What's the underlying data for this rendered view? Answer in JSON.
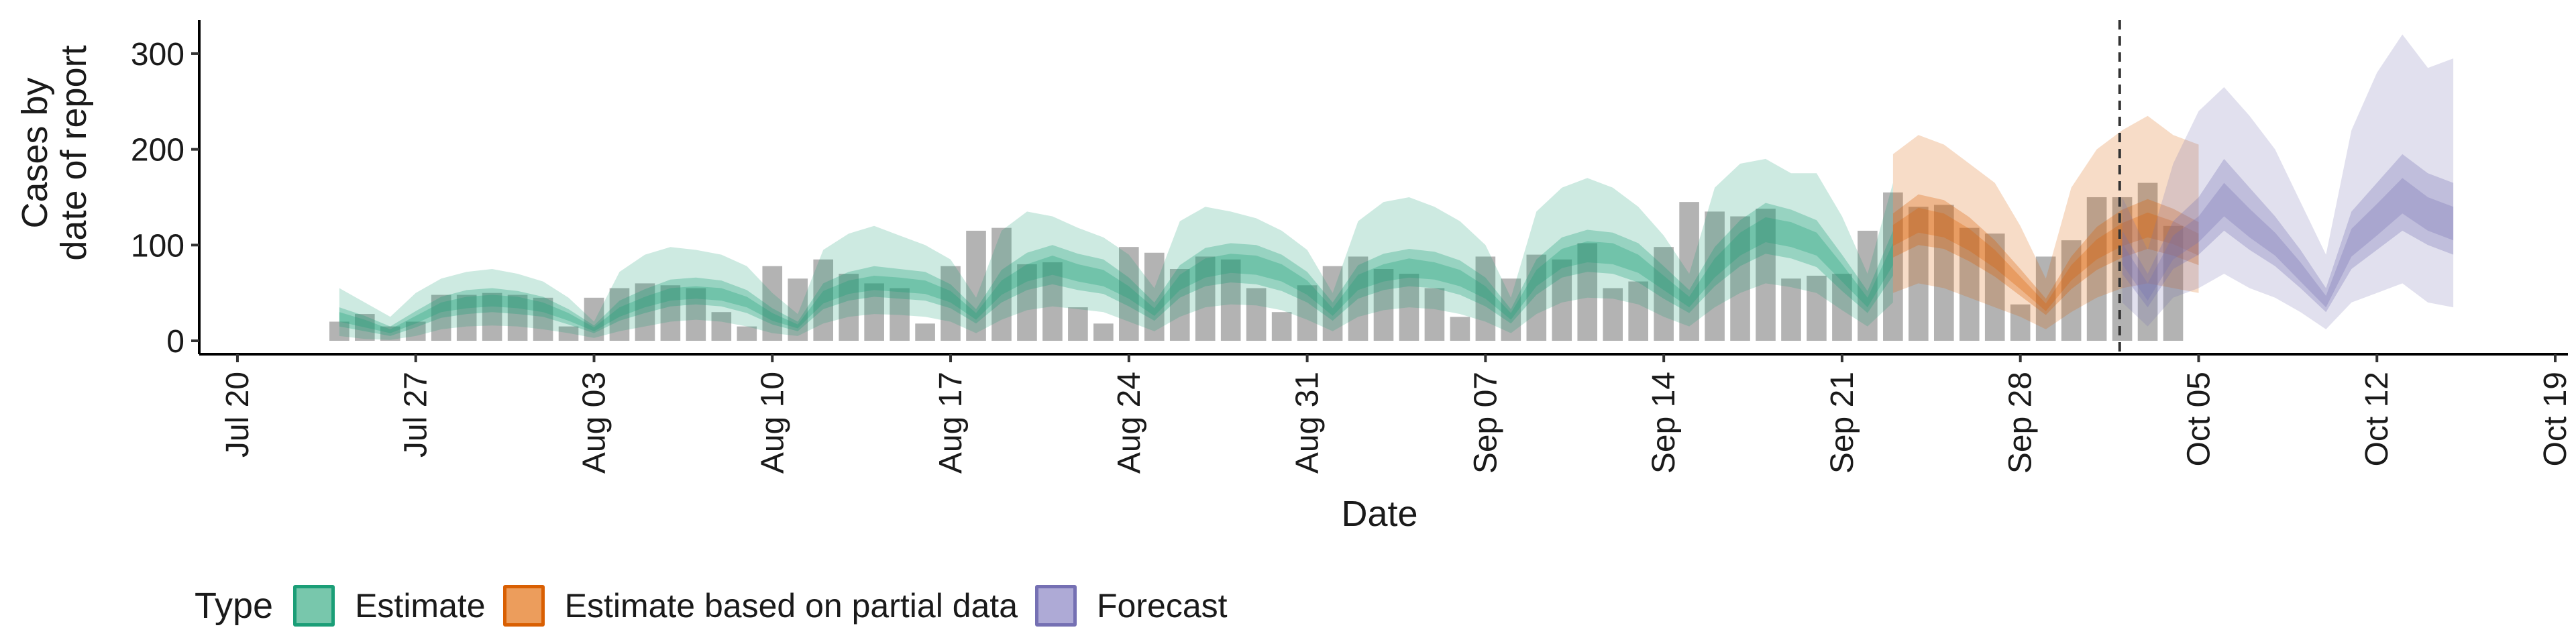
{
  "chart_data": {
    "type": "area",
    "title": "",
    "xlabel": "Date",
    "ylabel": [
      "Cases by",
      "date of report"
    ],
    "x_start": "2020-07-20",
    "x_ticks": [
      "Jul 20",
      "Jul 27",
      "Aug 03",
      "Aug 10",
      "Aug 17",
      "Aug 24",
      "Aug 31",
      "Sep 07",
      "Sep 14",
      "Sep 21",
      "Sep 28",
      "Oct 05",
      "Oct 12",
      "Oct 19"
    ],
    "y_ticks": [
      0,
      100,
      200,
      300
    ],
    "ylim": [
      -14,
      335
    ],
    "xlim_days": [
      -1.5,
      91.5
    ],
    "forecast_start_day": 73.9,
    "grid": false,
    "legend_position": "bottom",
    "legend_title": "Type",
    "colors": {
      "Estimate": "#1b9e77",
      "Estimate based on partial data": "#d95f02",
      "Forecast": "#7570b3",
      "bars": "#b3b3b3",
      "divider": "#333333"
    },
    "reported_cases": {
      "start_day": 4,
      "values": [
        20,
        28,
        15,
        20,
        48,
        48,
        50,
        48,
        45,
        15,
        45,
        55,
        60,
        58,
        55,
        30,
        15,
        78,
        65,
        85,
        70,
        60,
        55,
        18,
        78,
        115,
        118,
        80,
        82,
        35,
        18,
        98,
        92,
        75,
        88,
        85,
        55,
        30,
        58,
        78,
        88,
        75,
        70,
        55,
        25,
        88,
        65,
        90,
        85,
        102,
        55,
        62,
        98,
        145,
        135,
        130,
        138,
        65,
        68,
        70,
        115,
        155,
        140,
        142,
        118,
        112,
        38,
        88,
        105,
        150,
        150,
        165,
        120
      ]
    },
    "series": [
      {
        "name": "Estimate",
        "start_day": 4,
        "median": [
          25,
          18,
          10,
          22,
          35,
          40,
          42,
          40,
          35,
          25,
          12,
          30,
          40,
          48,
          50,
          48,
          40,
          25,
          15,
          45,
          55,
          60,
          58,
          55,
          45,
          25,
          55,
          70,
          78,
          70,
          65,
          50,
          30,
          60,
          75,
          80,
          78,
          70,
          55,
          30,
          60,
          70,
          75,
          72,
          65,
          50,
          25,
          65,
          85,
          92,
          90,
          80,
          60,
          40,
          75,
          100,
          115,
          110,
          100,
          70,
          40,
          90
        ],
        "lower90": [
          5,
          2,
          1,
          5,
          12,
          15,
          16,
          15,
          12,
          8,
          3,
          10,
          15,
          20,
          22,
          20,
          15,
          8,
          5,
          18,
          25,
          28,
          27,
          25,
          20,
          8,
          22,
          32,
          36,
          33,
          30,
          20,
          10,
          25,
          35,
          38,
          37,
          32,
          22,
          10,
          25,
          32,
          35,
          33,
          28,
          20,
          8,
          28,
          40,
          45,
          44,
          38,
          25,
          15,
          35,
          50,
          60,
          56,
          50,
          32,
          15,
          40
        ],
        "upper90": [
          55,
          40,
          25,
          50,
          65,
          72,
          75,
          70,
          62,
          45,
          20,
          72,
          90,
          98,
          95,
          90,
          78,
          50,
          28,
          95,
          112,
          120,
          110,
          100,
          85,
          45,
          115,
          135,
          130,
          118,
          108,
          90,
          55,
          125,
          140,
          135,
          128,
          115,
          95,
          50,
          125,
          145,
          150,
          140,
          125,
          100,
          45,
          135,
          160,
          170,
          160,
          140,
          110,
          70,
          160,
          185,
          190,
          175,
          175,
          130,
          70,
          165
        ],
        "lower50": [
          15,
          10,
          5,
          14,
          24,
          28,
          30,
          28,
          25,
          17,
          8,
          21,
          29,
          36,
          38,
          36,
          29,
          17,
          10,
          33,
          42,
          46,
          44,
          42,
          34,
          18,
          40,
          53,
          59,
          53,
          49,
          36,
          21,
          45,
          57,
          61,
          59,
          52,
          40,
          21,
          44,
          53,
          57,
          55,
          48,
          36,
          18,
          48,
          66,
          72,
          70,
          61,
          44,
          29,
          57,
          78,
          91,
          86,
          77,
          52,
          29,
          68
        ],
        "upper50": [
          35,
          26,
          15,
          31,
          46,
          53,
          55,
          52,
          46,
          33,
          16,
          42,
          54,
          64,
          66,
          63,
          53,
          34,
          20,
          60,
          72,
          78,
          75,
          72,
          59,
          33,
          74,
          92,
          100,
          91,
          85,
          66,
          40,
          79,
          97,
          102,
          100,
          90,
          72,
          40,
          79,
          91,
          96,
          93,
          84,
          66,
          33,
          85,
          108,
          116,
          113,
          102,
          78,
          53,
          98,
          126,
          144,
          137,
          126,
          90,
          52,
          115
        ],
        "lower20": [
          20,
          14,
          8,
          18,
          30,
          34,
          36,
          34,
          30,
          21,
          10,
          25,
          35,
          42,
          44,
          42,
          35,
          21,
          13,
          39,
          49,
          53,
          51,
          49,
          40,
          22,
          48,
          62,
          69,
          62,
          57,
          44,
          26,
          53,
          66,
          71,
          69,
          62,
          48,
          26,
          53,
          62,
          66,
          64,
          57,
          44,
          22,
          57,
          76,
          82,
          80,
          71,
          53,
          35,
          66,
          89,
          103,
          98,
          89,
          62,
          35,
          79
        ],
        "upper20": [
          30,
          22,
          12,
          26,
          40,
          46,
          48,
          46,
          40,
          29,
          14,
          35,
          46,
          55,
          57,
          55,
          46,
          29,
          17,
          52,
          63,
          68,
          66,
          63,
          52,
          29,
          63,
          80,
          89,
          80,
          74,
          57,
          34,
          69,
          86,
          91,
          89,
          80,
          63,
          34,
          69,
          80,
          86,
          82,
          74,
          57,
          29,
          74,
          96,
          104,
          102,
          90,
          68,
          46,
          86,
          113,
          129,
          124,
          113,
          80,
          45,
          102
        ]
      },
      {
        "name": "Estimate based on partial data",
        "start_day": 65,
        "median": [
          110,
          125,
          120,
          105,
          85,
          60,
          35,
          70,
          95,
          110,
          120,
          112,
          100
        ],
        "lower90": [
          50,
          60,
          55,
          45,
          35,
          25,
          12,
          30,
          45,
          55,
          60,
          55,
          50
        ],
        "upper90": [
          195,
          215,
          205,
          185,
          165,
          120,
          65,
          160,
          200,
          220,
          235,
          215,
          205
        ],
        "lower50": [
          87,
          100,
          96,
          83,
          67,
          47,
          27,
          54,
          74,
          87,
          96,
          89,
          79
        ],
        "upper50": [
          133,
          153,
          147,
          129,
          105,
          75,
          44,
          88,
          119,
          137,
          148,
          138,
          124
        ],
        "lower20": [
          99,
          113,
          108,
          94,
          76,
          54,
          31,
          63,
          85,
          99,
          108,
          101,
          89
        ],
        "upper20": [
          121,
          139,
          133,
          117,
          95,
          67,
          39,
          79,
          106,
          123,
          134,
          125,
          112
        ]
      },
      {
        "name": "Forecast",
        "start_day": 74,
        "median": [
          90,
          50,
          95,
          115,
          145,
          120,
          100,
          70,
          40,
          100,
          125,
          150,
          130,
          120
        ],
        "lower90": [
          40,
          15,
          45,
          55,
          70,
          55,
          45,
          30,
          12,
          40,
          50,
          60,
          40,
          35
        ],
        "upper90": [
          150,
          95,
          185,
          240,
          265,
          235,
          200,
          145,
          90,
          220,
          280,
          320,
          285,
          295
        ],
        "lower50": [
          70,
          35,
          75,
          90,
          115,
          95,
          78,
          55,
          30,
          75,
          95,
          115,
          100,
          90
        ],
        "upper50": [
          115,
          70,
          125,
          150,
          190,
          160,
          130,
          95,
          55,
          135,
          165,
          195,
          175,
          165
        ],
        "lower20": [
          80,
          42,
          85,
          103,
          130,
          108,
          89,
          62,
          35,
          88,
          110,
          133,
          115,
          105
        ],
        "upper20": [
          102,
          60,
          110,
          130,
          165,
          138,
          113,
          82,
          47,
          117,
          143,
          170,
          150,
          140
        ]
      }
    ]
  }
}
